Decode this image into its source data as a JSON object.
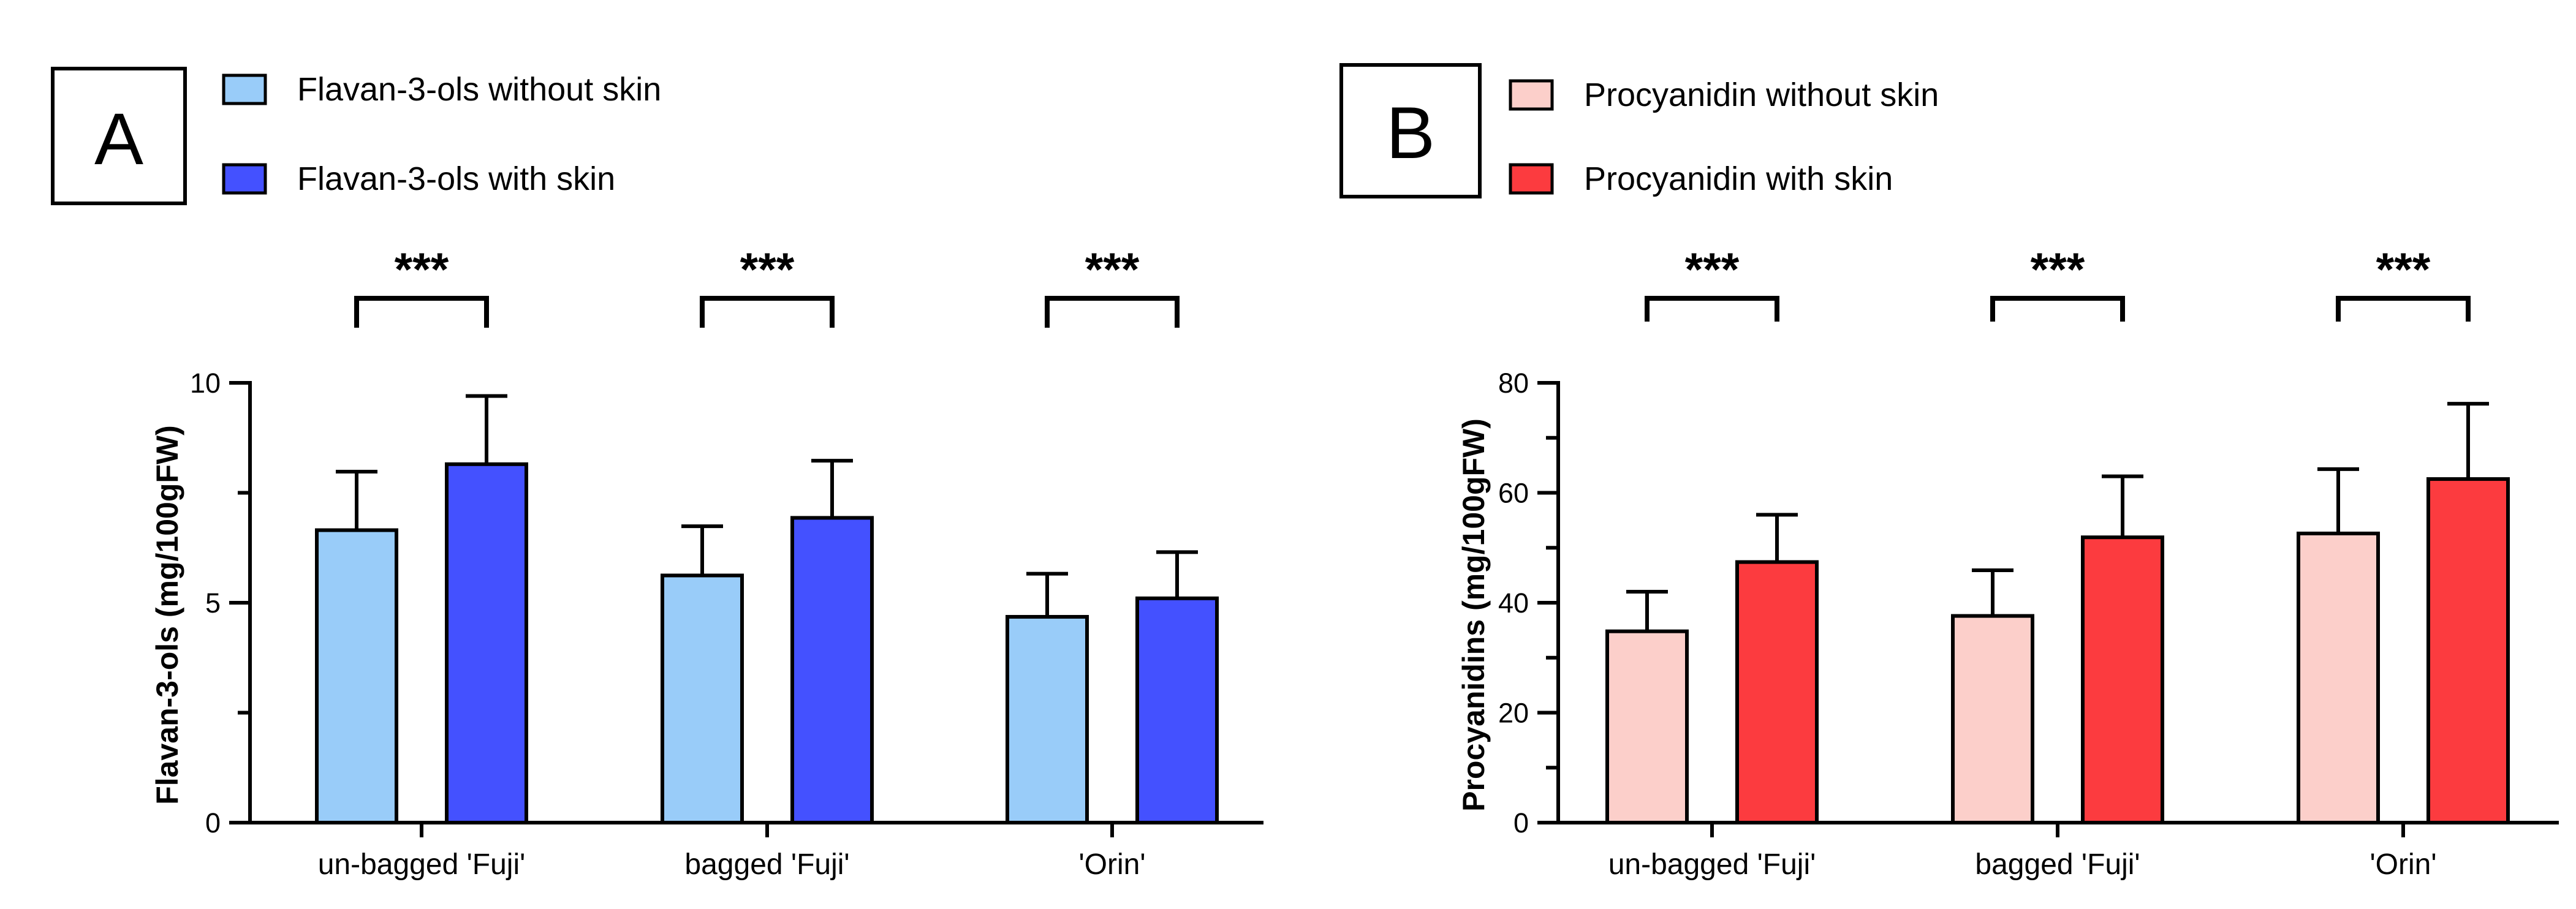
{
  "chart_data": [
    {
      "type": "bar",
      "panel_label": "A",
      "categories": [
        "un-bagged 'Fuji'",
        "bagged 'Fuji'",
        "'Orin'"
      ],
      "ylabel": "Flavan-3-ols (mg/100gFW)",
      "ylim": [
        0,
        10
      ],
      "yticks": [
        0,
        5,
        10
      ],
      "y_minor_step": 2.5,
      "series": [
        {
          "name": "Flavan-3-ols without skin",
          "color": "#99CCF9",
          "values": [
            6.65,
            5.62,
            4.68
          ],
          "errors": [
            1.33,
            1.12,
            0.98
          ]
        },
        {
          "name": "Flavan-3-ols with skin",
          "color": "#4451FF",
          "values": [
            8.15,
            6.93,
            5.1
          ],
          "errors": [
            1.55,
            1.3,
            1.05
          ]
        }
      ],
      "significance": [
        "***",
        "***",
        "***"
      ],
      "legend_position": "top-left"
    },
    {
      "type": "bar",
      "panel_label": "B",
      "categories": [
        "un-bagged 'Fuji'",
        "bagged 'Fuji'",
        "'Orin'"
      ],
      "ylabel": "Procyanidins (mg/100gFW)",
      "ylim": [
        0,
        80
      ],
      "yticks": [
        0,
        20,
        40,
        60,
        80
      ],
      "y_minor_step": 10,
      "series": [
        {
          "name": "Procyanidin without skin",
          "color": "#FCCFCA",
          "values": [
            34.8,
            37.6,
            52.6
          ],
          "errors": [
            7.2,
            8.3,
            11.7
          ]
        },
        {
          "name": "Procyanidin with skin",
          "color": "#FC3B3F",
          "values": [
            47.4,
            51.9,
            62.5
          ],
          "errors": [
            8.6,
            11.1,
            13.7
          ]
        }
      ],
      "significance": [
        "***",
        "***",
        "***"
      ],
      "legend_position": "top-left"
    }
  ]
}
